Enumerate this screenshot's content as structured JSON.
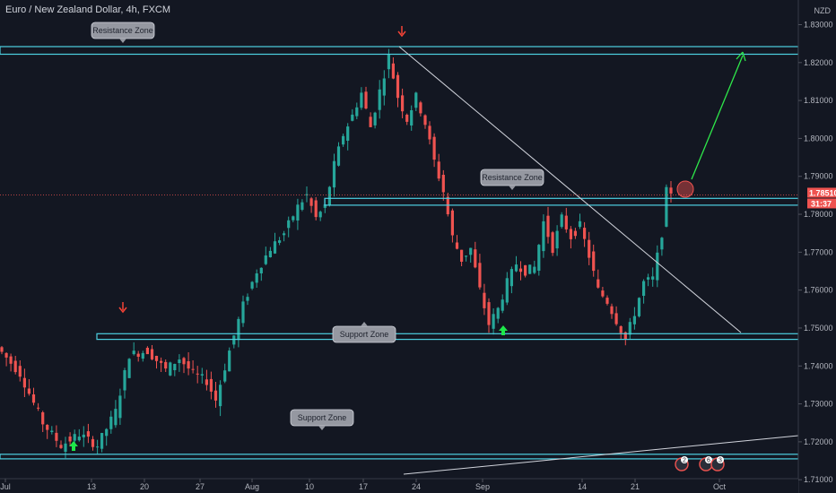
{
  "header": {
    "symbol_title": "Euro / New Zealand Dollar, 4h, FXCM",
    "currency": "NZD"
  },
  "colors": {
    "background": "#131722",
    "up_candle": "#26a69a",
    "down_candle": "#ef5350",
    "zone_line": "#4dd0e1",
    "trendline": "#d1d4dc",
    "projection_arrow": "#2ee84a",
    "marker_up": "#1ee84a",
    "marker_down": "#f44336"
  },
  "chart_data": {
    "type": "candlestick",
    "x_axis_ticks": [
      "Jul",
      "13",
      "20",
      "27",
      "Aug",
      "10",
      "17",
      "24",
      "Sep",
      "14",
      "21",
      "Oct"
    ],
    "y_axis_ticks": [
      "1.83000",
      "1.82000",
      "1.81000",
      "1.80000",
      "1.79000",
      "1.78000",
      "1.77000",
      "1.76000",
      "1.75000",
      "1.74000",
      "1.73000",
      "1.72000",
      "1.71000"
    ],
    "ylim": [
      1.7065,
      1.8365
    ],
    "current_price": "1.78510",
    "countdown": "31:37",
    "price_path": [
      [
        0,
        1.745
      ],
      [
        5,
        1.738
      ],
      [
        10,
        1.725
      ],
      [
        14,
        1.719
      ],
      [
        18,
        1.722
      ],
      [
        22,
        1.719
      ],
      [
        26,
        1.728
      ],
      [
        29,
        1.743
      ],
      [
        33,
        1.744
      ],
      [
        37,
        1.739
      ],
      [
        40,
        1.742
      ],
      [
        43,
        1.738
      ],
      [
        46,
        1.736
      ],
      [
        48,
        1.731
      ],
      [
        51,
        1.744
      ],
      [
        54,
        1.756
      ],
      [
        57,
        1.765
      ],
      [
        60,
        1.771
      ],
      [
        63,
        1.775
      ],
      [
        66,
        1.782
      ],
      [
        68,
        1.785
      ],
      [
        70,
        1.779
      ],
      [
        72,
        1.782
      ],
      [
        74,
        1.793
      ],
      [
        76,
        1.801
      ],
      [
        78,
        1.806
      ],
      [
        80,
        1.812
      ],
      [
        82,
        1.803
      ],
      [
        84,
        1.8125
      ],
      [
        86,
        1.8215
      ],
      [
        88,
        1.811
      ],
      [
        90,
        1.805
      ],
      [
        92,
        1.811
      ],
      [
        94,
        1.804
      ],
      [
        96,
        1.794
      ],
      [
        98,
        1.786
      ],
      [
        100,
        1.774
      ],
      [
        102,
        1.768
      ],
      [
        104,
        1.771
      ],
      [
        106,
        1.76
      ],
      [
        108,
        1.751
      ],
      [
        110,
        1.755
      ],
      [
        112,
        1.762
      ],
      [
        114,
        1.767
      ],
      [
        116,
        1.765
      ],
      [
        118,
        1.766
      ],
      [
        120,
        1.778
      ],
      [
        122,
        1.771
      ],
      [
        124,
        1.779
      ],
      [
        126,
        1.774
      ],
      [
        128,
        1.777
      ],
      [
        130,
        1.769
      ],
      [
        132,
        1.76
      ],
      [
        134,
        1.757
      ],
      [
        136,
        1.752
      ],
      [
        138,
        1.747
      ],
      [
        140,
        1.754
      ],
      [
        142,
        1.762
      ],
      [
        144,
        1.763
      ],
      [
        146,
        1.775
      ],
      [
        147,
        1.786
      ]
    ],
    "zones": [
      {
        "label": "Resistance Zone",
        "top": 1.8242,
        "bottom": 1.8222
      },
      {
        "label": "Resistance Zone",
        "top": 1.7842,
        "bottom": 1.7824
      },
      {
        "label": "Support Zone",
        "top": 1.7485,
        "bottom": 1.747
      },
      {
        "label": "Support Zone",
        "top": 1.7167,
        "bottom": 1.7155
      }
    ],
    "event_markers": [
      "2",
      "6",
      "3"
    ]
  }
}
